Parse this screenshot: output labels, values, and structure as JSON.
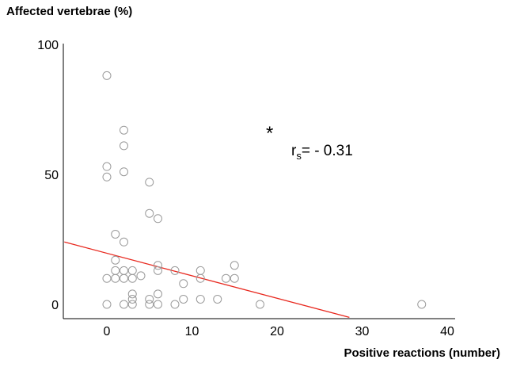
{
  "chart_data": {
    "type": "scatter",
    "ylabel": "Affected vertebrae (%)",
    "xlabel": "Positive reactions (number)",
    "xlim": [
      -5,
      40
    ],
    "ylim": [
      -5,
      100
    ],
    "x_ticks": [
      0,
      10,
      20,
      30,
      40
    ],
    "y_ticks": [
      0,
      50,
      100
    ],
    "grid": false,
    "annotation_star": "*",
    "annotation_r": "r",
    "annotation_sub": "s",
    "annotation_value": "= - 0.31",
    "regression_line": {
      "x": [
        -5,
        28.5
      ],
      "y": [
        24,
        -5
      ]
    },
    "points": [
      {
        "x": 0,
        "y": 88
      },
      {
        "x": 0,
        "y": 53
      },
      {
        "x": 0,
        "y": 49
      },
      {
        "x": 0,
        "y": 10
      },
      {
        "x": 0,
        "y": 0
      },
      {
        "x": 1,
        "y": 27
      },
      {
        "x": 1,
        "y": 17
      },
      {
        "x": 1,
        "y": 13
      },
      {
        "x": 1,
        "y": 10
      },
      {
        "x": 2,
        "y": 67
      },
      {
        "x": 2,
        "y": 61
      },
      {
        "x": 2,
        "y": 51
      },
      {
        "x": 2,
        "y": 24
      },
      {
        "x": 2,
        "y": 13
      },
      {
        "x": 2,
        "y": 10
      },
      {
        "x": 2,
        "y": 0
      },
      {
        "x": 3,
        "y": 13
      },
      {
        "x": 3,
        "y": 10
      },
      {
        "x": 3,
        "y": 4
      },
      {
        "x": 3,
        "y": 2
      },
      {
        "x": 3,
        "y": 0
      },
      {
        "x": 4,
        "y": 11
      },
      {
        "x": 5,
        "y": 47
      },
      {
        "x": 5,
        "y": 35
      },
      {
        "x": 5,
        "y": 2
      },
      {
        "x": 5,
        "y": 0
      },
      {
        "x": 6,
        "y": 33
      },
      {
        "x": 6,
        "y": 15
      },
      {
        "x": 6,
        "y": 13
      },
      {
        "x": 6,
        "y": 4
      },
      {
        "x": 6,
        "y": 0
      },
      {
        "x": 8,
        "y": 13
      },
      {
        "x": 8,
        "y": 0
      },
      {
        "x": 9,
        "y": 8
      },
      {
        "x": 9,
        "y": 2
      },
      {
        "x": 11,
        "y": 13
      },
      {
        "x": 11,
        "y": 10
      },
      {
        "x": 11,
        "y": 2
      },
      {
        "x": 13,
        "y": 2
      },
      {
        "x": 14,
        "y": 10
      },
      {
        "x": 15,
        "y": 15
      },
      {
        "x": 15,
        "y": 10
      },
      {
        "x": 18,
        "y": 0
      },
      {
        "x": 37,
        "y": 0
      }
    ]
  }
}
